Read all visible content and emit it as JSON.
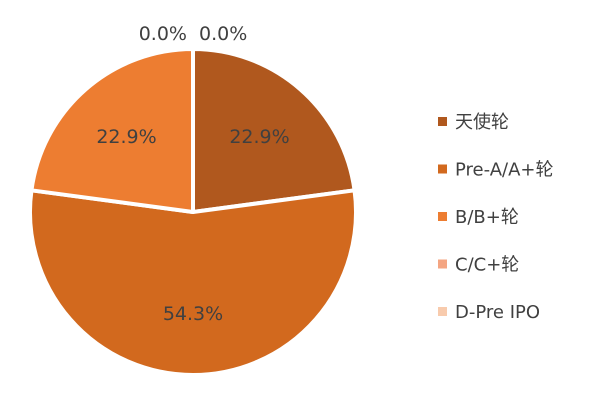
{
  "chart_data": {
    "type": "pie",
    "title": "",
    "series": [
      {
        "name": "天使轮",
        "value": 22.9,
        "label": "22.9%",
        "color": "#B0581E"
      },
      {
        "name": "Pre-A/A+轮",
        "value": 54.3,
        "label": "54.3%",
        "color": "#D2691E"
      },
      {
        "name": "B/B+轮",
        "value": 22.9,
        "label": "22.9%",
        "color": "#ED7D31"
      },
      {
        "name": "C/C+轮",
        "value": 0.0,
        "label": "0.0%",
        "color": "#F4A582"
      },
      {
        "name": "D-Pre IPO",
        "value": 0.0,
        "label": "0.0%",
        "color": "#F8CBAD"
      }
    ],
    "legend_position": "right"
  }
}
